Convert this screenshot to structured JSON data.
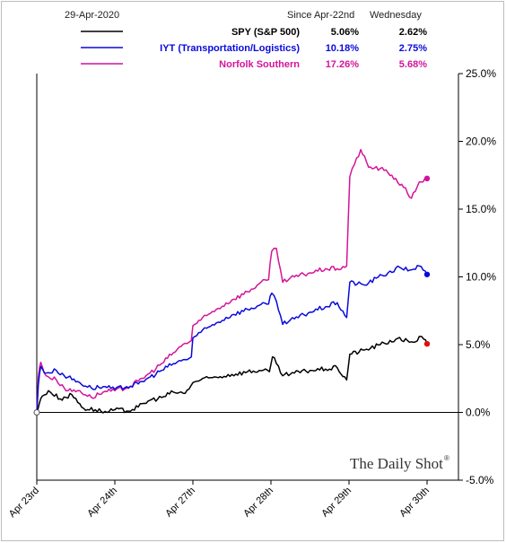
{
  "header": {
    "date": "29-Apr-2020",
    "col1": "Since Apr-22nd",
    "col2": "Wednesday"
  },
  "branding": {
    "text": "The Daily Shot",
    "mark": "®"
  },
  "colors": {
    "spy": "#000000",
    "iyt": "#0a0adc",
    "nsc": "#d4149a",
    "endpoint_spy": "#e01010"
  },
  "chart_data": {
    "type": "line",
    "x_categories": [
      "Apr 23rd",
      "Apr 24th",
      "Apr 27th",
      "Apr 28th",
      "Apr 29th",
      "Apr 30th"
    ],
    "y_ticks": [
      "25.0%",
      "20.0%",
      "15.0%",
      "10.0%",
      "5.0%",
      "0.0%",
      "-5.0%"
    ],
    "ylim": [
      -5,
      25
    ],
    "grid": false,
    "legend_position": "top",
    "series": [
      {
        "key": "spy",
        "name": "SPY (S&P 500)",
        "since": "5.06%",
        "day": "2.62%",
        "points": [
          [
            0,
            0.0
          ],
          [
            0.03,
            0.6
          ],
          [
            0.07,
            1.2
          ],
          [
            0.15,
            1.6
          ],
          [
            0.3,
            1.0
          ],
          [
            0.45,
            1.3
          ],
          [
            0.6,
            0.3
          ],
          [
            0.75,
            0.2
          ],
          [
            0.9,
            0.0
          ],
          [
            1.0,
            0.2
          ],
          [
            1.15,
            0.1
          ],
          [
            1.3,
            0.4
          ],
          [
            1.45,
            0.9
          ],
          [
            1.6,
            1.1
          ],
          [
            1.75,
            1.5
          ],
          [
            1.9,
            1.4
          ],
          [
            2.0,
            2.2
          ],
          [
            2.1,
            2.4
          ],
          [
            2.3,
            2.6
          ],
          [
            2.5,
            2.8
          ],
          [
            2.7,
            3.0
          ],
          [
            2.85,
            3.1
          ],
          [
            2.98,
            3.0
          ],
          [
            3.02,
            4.1
          ],
          [
            3.07,
            3.6
          ],
          [
            3.15,
            2.7
          ],
          [
            3.3,
            2.9
          ],
          [
            3.5,
            3.1
          ],
          [
            3.7,
            3.2
          ],
          [
            3.85,
            3.3
          ],
          [
            3.97,
            2.4
          ],
          [
            4.01,
            4.3
          ],
          [
            4.2,
            4.6
          ],
          [
            4.4,
            5.0
          ],
          [
            4.6,
            5.4
          ],
          [
            4.75,
            5.3
          ],
          [
            4.85,
            5.2
          ],
          [
            4.9,
            5.6
          ],
          [
            4.96,
            5.4
          ],
          [
            5.0,
            5.06
          ]
        ]
      },
      {
        "key": "iyt",
        "name": "IYT (Transportation/Logistics)",
        "since": "10.18%",
        "day": "2.75%",
        "points": [
          [
            0,
            0.0
          ],
          [
            0.02,
            2.0
          ],
          [
            0.05,
            3.4
          ],
          [
            0.12,
            2.9
          ],
          [
            0.25,
            3.1
          ],
          [
            0.4,
            2.6
          ],
          [
            0.55,
            2.2
          ],
          [
            0.7,
            1.8
          ],
          [
            0.85,
            1.9
          ],
          [
            1.0,
            1.7
          ],
          [
            1.15,
            1.9
          ],
          [
            1.3,
            2.1
          ],
          [
            1.45,
            2.6
          ],
          [
            1.6,
            3.1
          ],
          [
            1.75,
            3.6
          ],
          [
            1.9,
            3.9
          ],
          [
            1.98,
            4.1
          ],
          [
            2.0,
            5.5
          ],
          [
            2.1,
            5.9
          ],
          [
            2.3,
            6.6
          ],
          [
            2.5,
            7.2
          ],
          [
            2.7,
            7.6
          ],
          [
            2.85,
            7.9
          ],
          [
            2.97,
            8.0
          ],
          [
            3.01,
            8.8
          ],
          [
            3.07,
            8.2
          ],
          [
            3.15,
            6.5
          ],
          [
            3.3,
            6.9
          ],
          [
            3.5,
            7.4
          ],
          [
            3.7,
            7.8
          ],
          [
            3.85,
            8.1
          ],
          [
            3.97,
            7.0
          ],
          [
            4.01,
            9.6
          ],
          [
            4.2,
            9.4
          ],
          [
            4.35,
            9.9
          ],
          [
            4.5,
            10.3
          ],
          [
            4.65,
            10.7
          ],
          [
            4.78,
            10.5
          ],
          [
            4.9,
            10.8
          ],
          [
            5.0,
            10.18
          ]
        ]
      },
      {
        "key": "nsc",
        "name": "Norfolk Southern",
        "since": "17.26%",
        "day": "5.68%",
        "points": [
          [
            0,
            0.0
          ],
          [
            0.02,
            2.6
          ],
          [
            0.05,
            3.7
          ],
          [
            0.12,
            2.7
          ],
          [
            0.25,
            2.4
          ],
          [
            0.4,
            1.6
          ],
          [
            0.55,
            1.6
          ],
          [
            0.7,
            1.1
          ],
          [
            0.85,
            1.5
          ],
          [
            1.0,
            1.6
          ],
          [
            1.15,
            1.8
          ],
          [
            1.3,
            2.3
          ],
          [
            1.45,
            2.9
          ],
          [
            1.6,
            3.6
          ],
          [
            1.75,
            4.4
          ],
          [
            1.9,
            5.1
          ],
          [
            1.98,
            5.3
          ],
          [
            2.0,
            6.4
          ],
          [
            2.1,
            6.8
          ],
          [
            2.3,
            7.6
          ],
          [
            2.5,
            8.3
          ],
          [
            2.7,
            8.9
          ],
          [
            2.85,
            9.5
          ],
          [
            2.97,
            9.8
          ],
          [
            3.01,
            11.9
          ],
          [
            3.07,
            12.1
          ],
          [
            3.15,
            9.6
          ],
          [
            3.3,
            10.0
          ],
          [
            3.5,
            10.3
          ],
          [
            3.7,
            10.6
          ],
          [
            3.85,
            10.6
          ],
          [
            3.97,
            10.8
          ],
          [
            4.01,
            17.4
          ],
          [
            4.07,
            18.3
          ],
          [
            4.15,
            19.4
          ],
          [
            4.25,
            18.1
          ],
          [
            4.4,
            18.0
          ],
          [
            4.55,
            17.5
          ],
          [
            4.7,
            16.6
          ],
          [
            4.8,
            15.8
          ],
          [
            4.9,
            17.0
          ],
          [
            5.0,
            17.26
          ]
        ]
      }
    ]
  }
}
